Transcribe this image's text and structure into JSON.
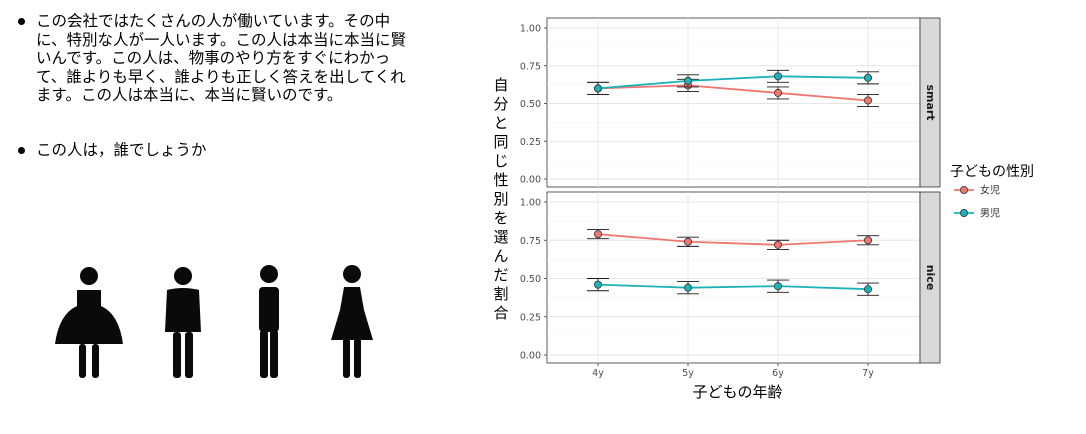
{
  "text": {
    "bullet1": "この会社ではたくさんの人が働いています。その中に、特別な人が一人います。この人は本当に本当に賢いんです。この人は、物事のやり方をすぐにわかって、誰よりも早く、誰よりも正しく答えを出してくれます。この人は本当に、本当に賢いのです。",
    "bullet2": "この人は，誰でしょうか"
  },
  "icons": [
    "woman-dress-icon",
    "man-icon",
    "man-icon",
    "woman-icon"
  ],
  "colors": {
    "girl": "#F0766E",
    "boy": "#1EB2B8",
    "strip": "#D9D9D9"
  },
  "chart_data": {
    "type": "line",
    "facets": [
      "smart",
      "nice"
    ],
    "x": [
      "4y",
      "5y",
      "6y",
      "7y"
    ],
    "ylim": [
      0,
      1
    ],
    "yticks": [
      "0.00",
      "0.25",
      "0.50",
      "0.75",
      "1.00"
    ],
    "xlabel": "子どもの年齢",
    "ylabel": "自分と同じ性別を選んだ割合",
    "legend": {
      "title": "子どもの性別",
      "position": "right"
    },
    "grid": true,
    "series": [
      {
        "name": "女児",
        "color": "#F0766E",
        "smart": {
          "values": [
            0.6,
            0.62,
            0.57,
            0.52
          ],
          "err": [
            0.04,
            0.04,
            0.04,
            0.04
          ]
        },
        "nice": {
          "values": [
            0.79,
            0.74,
            0.72,
            0.75
          ],
          "err": [
            0.03,
            0.03,
            0.03,
            0.03
          ]
        }
      },
      {
        "name": "男児",
        "color": "#1EB2B8",
        "smart": {
          "values": [
            0.6,
            0.65,
            0.68,
            0.67
          ],
          "err": [
            0.04,
            0.04,
            0.04,
            0.04
          ]
        },
        "nice": {
          "values": [
            0.46,
            0.44,
            0.45,
            0.43
          ],
          "err": [
            0.04,
            0.04,
            0.04,
            0.04
          ]
        }
      }
    ]
  }
}
